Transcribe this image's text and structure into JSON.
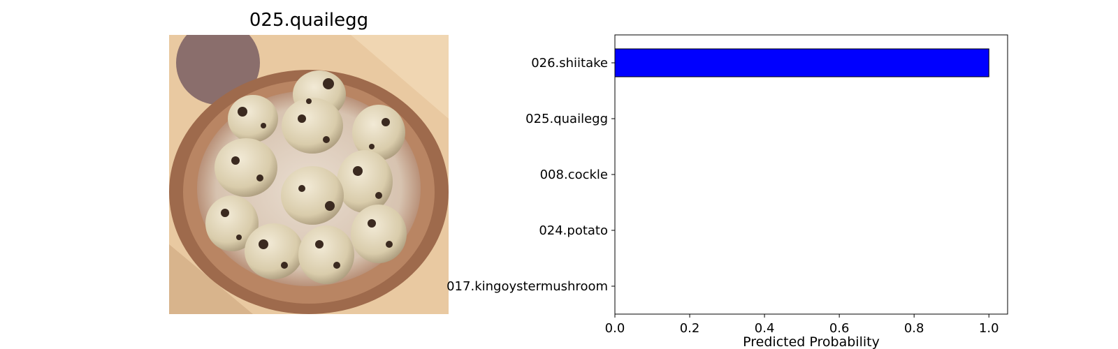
{
  "image_panel": {
    "title": "025.quailegg"
  },
  "chart_data": {
    "type": "bar",
    "orientation": "horizontal",
    "categories": [
      "026.shiitake",
      "025.quailegg",
      "008.cockle",
      "024.potato",
      "017.kingoystermushroom"
    ],
    "values": [
      1.0,
      0.0,
      0.0,
      0.0,
      0.0
    ],
    "xlabel": "Predicted Probability",
    "ylabel": "",
    "xlim": [
      0.0,
      1.05
    ],
    "xticks": [
      "0.0",
      "0.2",
      "0.4",
      "0.6",
      "0.8",
      "1.0"
    ],
    "bar_color": "#0000ff",
    "edge_color": "#000000",
    "grid": false,
    "legend": "none"
  }
}
